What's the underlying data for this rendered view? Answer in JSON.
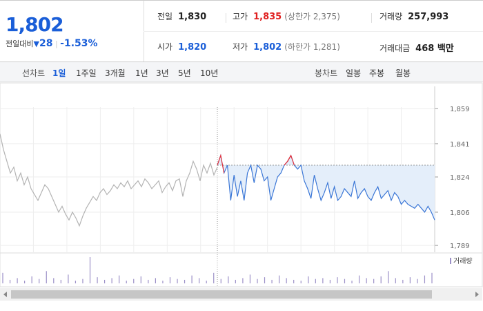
{
  "header": {
    "price": "1,802",
    "change_label": "전일대비",
    "change": "28",
    "change_pct": "-1.53%"
  },
  "stats": [
    {
      "label": "전일",
      "value": "1,830"
    },
    {
      "label": "고가",
      "value": "1,835",
      "note": "(상한가 2,375)"
    },
    {
      "label": "거래량",
      "value": "257,993"
    },
    {
      "label": "시가",
      "value": "1,820"
    },
    {
      "label": "저가",
      "value": "1,802",
      "note": "(하한가 1,281)"
    },
    {
      "label": "거래대금",
      "value": "468 백만"
    }
  ],
  "tabs": {
    "line_label": "선차트",
    "line": [
      "1일",
      "1주일",
      "3개월",
      "1년",
      "3년",
      "5년",
      "10년"
    ],
    "candle_label": "봉차트",
    "candle": [
      "일봉",
      "주봉",
      "월봉"
    ]
  },
  "chart_data": {
    "type": "line",
    "ylim": [
      1785.5,
      1870.3
    ],
    "yticks": [
      {
        "value": 1859,
        "label": "1,859"
      },
      {
        "value": 1841,
        "label": "1,841"
      },
      {
        "value": 1824,
        "label": "1,824"
      },
      {
        "value": 1806,
        "label": "1,806"
      },
      {
        "value": 1789,
        "label": "1,789"
      }
    ],
    "grid": true,
    "reference_line": 1830,
    "above_color": "#e8333a",
    "fill_color": "#e4eefa",
    "series": [
      {
        "color": "#b3b3b3",
        "values": [
          1846,
          1838,
          1832,
          1826,
          1829,
          1822,
          1826,
          1820,
          1824,
          1818,
          1815,
          1812,
          1816,
          1820,
          1818,
          1814,
          1810,
          1806,
          1809,
          1805,
          1802,
          1806,
          1803,
          1799,
          1804,
          1808,
          1811,
          1814,
          1812,
          1816,
          1818,
          1815,
          1817,
          1820,
          1818,
          1821,
          1819,
          1822,
          1818,
          1820,
          1822,
          1819,
          1823,
          1821,
          1818,
          1820,
          1822,
          1816,
          1819,
          1821,
          1817,
          1822,
          1823,
          1814,
          1822,
          1826,
          1832,
          1828,
          1822,
          1830,
          1826,
          1831,
          1825,
          1829
        ]
      },
      {
        "color": "#3a76d6",
        "values": [
          1830,
          1835,
          1826,
          1830,
          1812,
          1825,
          1814,
          1822,
          1812,
          1826,
          1830,
          1821,
          1830,
          1828,
          1822,
          1824,
          1812,
          1818,
          1824,
          1826,
          1830,
          1832,
          1835,
          1830,
          1828,
          1830,
          1822,
          1818,
          1813,
          1825,
          1818,
          1812,
          1816,
          1821,
          1813,
          1819,
          1812,
          1814,
          1818,
          1816,
          1814,
          1822,
          1813,
          1816,
          1818,
          1814,
          1812,
          1816,
          1819,
          1813,
          1815,
          1817,
          1812,
          1816,
          1814,
          1810,
          1812,
          1810,
          1809,
          1808,
          1810,
          1808,
          1806,
          1809,
          1806,
          1802
        ]
      }
    ],
    "volume": {
      "label": "거래량",
      "color": "#9b8fc7",
      "values": [
        12,
        4,
        6,
        3,
        8,
        5,
        14,
        6,
        4,
        10,
        3,
        5,
        30,
        7,
        4,
        6,
        9,
        3,
        5,
        8,
        4,
        6,
        3,
        7,
        5,
        4,
        9,
        6,
        3,
        12,
        5,
        8,
        4,
        6,
        10,
        5,
        7,
        4,
        9,
        6,
        4,
        3,
        8,
        5,
        6,
        4,
        7,
        5,
        3,
        9,
        6,
        5,
        8,
        14,
        6,
        4,
        7,
        5,
        9,
        12
      ]
    }
  }
}
